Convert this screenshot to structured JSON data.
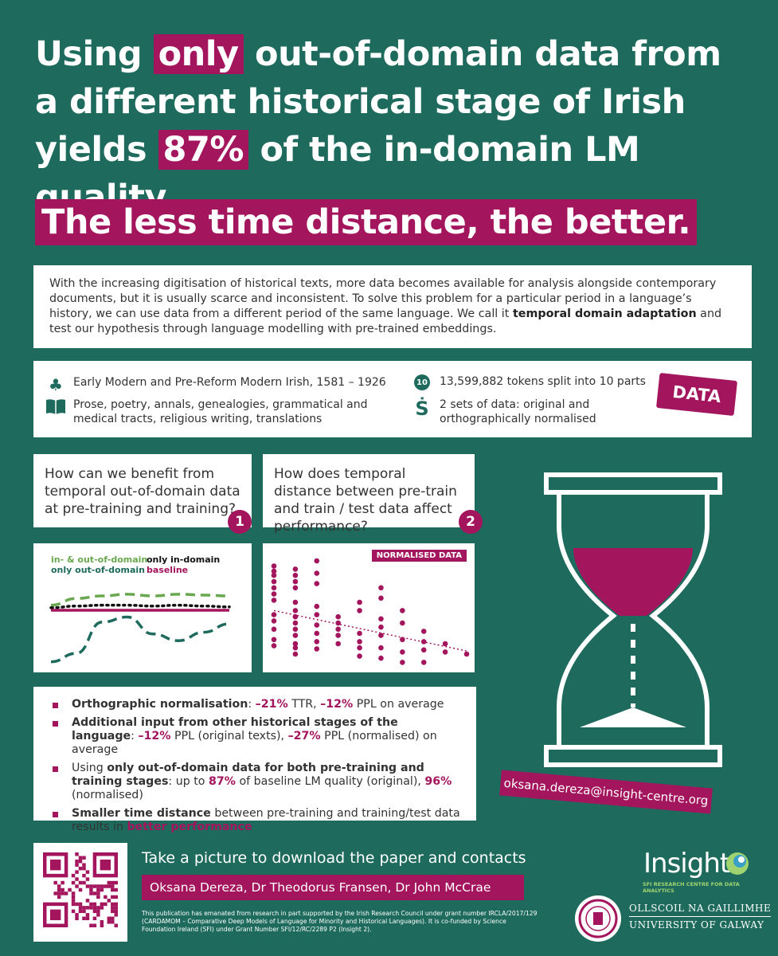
{
  "headline": {
    "part1": "Using ",
    "hl1": "only",
    "part2": " out-of-domain data from a different historical stage of Irish yields ",
    "hl2": "87%",
    "part3": " of the in-domain LM quality."
  },
  "subtitle": "The less time distance, the better.",
  "intro": {
    "text1": "With the increasing digitisation of historical texts, more data becomes available for analysis alongside contemporary documents, but it is usually scarce and inconsistent. To solve this problem for a particular period in a language’s history, we can use data from a different period of the same language. We call it ",
    "bold": "temporal domain adaptation",
    "text2": " and test our hypothesis through language modelling with pre-trained embeddings."
  },
  "data_info": {
    "period": "Early Modern and Pre-Reform Modern Irish, 1581 – 1926",
    "genres": "Prose, poetry, annals, genealogies, grammatical and medical tracts, religious writing, translations",
    "tokens_badge": "10",
    "tokens": "13,599,882 tokens split into 10 parts",
    "sets_glyph": "Ṡ",
    "sets": "2 sets of data: original and orthographically normalised",
    "banner": "DATA"
  },
  "questions": [
    {
      "text": "How can we benefit from temporal out-of-domain data at pre-training and training?",
      "num": "1"
    },
    {
      "text": "How does temporal distance between pre-train and train / test data affect performance?",
      "num": "2"
    }
  ],
  "line_chart": {
    "legend": {
      "in_out": "in- & out-of-domain",
      "only_out": "only out-of-domain",
      "only_in": "only in-domain",
      "baseline": "baseline"
    }
  },
  "scatter_chart": {
    "label": "NORMALISED DATA"
  },
  "chart_data": [
    {
      "type": "line",
      "x": [
        1,
        2,
        3,
        4,
        5,
        6,
        7,
        8
      ],
      "series": [
        {
          "name": "in- & out-of-domain",
          "values": [
            0.72,
            0.8,
            0.83,
            0.85,
            0.83,
            0.85,
            0.84,
            0.83
          ]
        },
        {
          "name": "only in-domain",
          "values": [
            0.69,
            0.71,
            0.72,
            0.72,
            0.71,
            0.72,
            0.71,
            0.7
          ]
        },
        {
          "name": "baseline",
          "values": [
            0.66,
            0.66,
            0.66,
            0.66,
            0.66,
            0.66,
            0.66,
            0.66
          ]
        },
        {
          "name": "only out-of-domain",
          "values": [
            0.05,
            0.15,
            0.52,
            0.58,
            0.38,
            0.3,
            0.4,
            0.5
          ]
        }
      ],
      "colors": {
        "in- & out-of-domain": "#6aa84f",
        "only in-domain": "#111111",
        "baseline": "#a3155d",
        "only out-of-domain": "#1e6b5e"
      }
    },
    {
      "type": "scatter",
      "title": "NORMALISED DATA",
      "columns": [
        {
          "x": 1,
          "y": [
            0.95,
            0.9,
            0.86,
            0.8,
            0.74,
            0.68,
            0.62,
            0.48,
            0.42,
            0.34,
            0.24,
            0.18
          ]
        },
        {
          "x": 2,
          "y": [
            0.92,
            0.86,
            0.8,
            0.74,
            0.6,
            0.52,
            0.46,
            0.4,
            0.34,
            0.28,
            0.2,
            0.16,
            0.1
          ]
        },
        {
          "x": 3,
          "y": [
            1.0,
            0.88,
            0.78,
            0.56,
            0.48,
            0.38,
            0.3,
            0.22,
            0.15
          ]
        },
        {
          "x": 4,
          "y": [
            0.46,
            0.4,
            0.34,
            0.28,
            0.2
          ]
        },
        {
          "x": 5,
          "y": [
            0.6,
            0.52,
            0.3,
            0.22,
            0.16,
            0.08
          ]
        },
        {
          "x": 6,
          "y": [
            0.74,
            0.64,
            0.44,
            0.36,
            0.28,
            0.16,
            0.06
          ]
        },
        {
          "x": 7,
          "y": [
            0.52,
            0.4,
            0.24,
            0.12,
            0.02
          ]
        },
        {
          "x": 8,
          "y": [
            0.32,
            0.22,
            0.14,
            0.02
          ]
        },
        {
          "x": 9,
          "y": [
            0.2,
            0.12
          ]
        },
        {
          "x": 10,
          "y": [
            0.1
          ]
        }
      ],
      "trend": {
        "from": [
          1,
          0.52
        ],
        "to": [
          10,
          0.13
        ]
      },
      "color": "#a3155d"
    }
  ],
  "results": [
    {
      "b": "Orthographic normalisation",
      "t1": ": ",
      "m1": "–21%",
      "t2": " TTR, ",
      "m2": "–12%",
      "t3": " PPL on average"
    },
    {
      "b": "Additional input from other historical stages of the language",
      "t1": ": ",
      "m1": "–12%",
      "t2": " PPL (original texts), ",
      "m2": "–27%",
      "t3": " PPL (normalised) on average"
    },
    {
      "t0": "Using ",
      "b": "only out-of-domain data for both pre-training and training stages",
      "t1": ": up to ",
      "m1": "87%",
      "t2": " of baseline LM quality (original), ",
      "m2": "96%",
      "t3": " (normalised)"
    },
    {
      "b": "Smaller time distance",
      "t1": " between pre-training and training/test data results in ",
      "m1": "better performance",
      "t2": "",
      "m2": "",
      "t3": ""
    }
  ],
  "email": "oksana.dereza@insight-centre.org",
  "footer": {
    "take_picture": "Take a picture to download the paper and contacts",
    "authors": "Oksana Dereza, Dr Theodorus Fransen, Dr John McCrae",
    "funding": "This publication has emanated from research in part supported by the Irish Research Council under grant number IRCLA/2017/129 (CARDAMOM – Comparative Deep Models of Language for Minority and Historical Languages). It is co-funded by Science Foundation Ireland (SFI) under Grant Number SFI/12/RC/2289 P2 (Insight 2).",
    "insight": "Insight",
    "insight_sub": "SFI RESEARCH CENTRE FOR DATA ANALYTICS",
    "uni_line1": "OLLSCOIL NA GAILLIMHE",
    "uni_line2": "UNIVERSITY OF GALWAY"
  }
}
